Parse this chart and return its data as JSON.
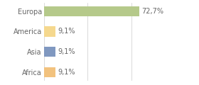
{
  "categories": [
    "Africa",
    "Asia",
    "America",
    "Europa"
  ],
  "values": [
    9.1,
    9.1,
    9.1,
    72.7
  ],
  "bar_colors": [
    "#f2c27e",
    "#8098c0",
    "#f5d88e",
    "#b5c98a"
  ],
  "labels": [
    "9,1%",
    "9,1%",
    "9,1%",
    "72,7%"
  ],
  "xlim": [
    0,
    100
  ],
  "background_color": "#ffffff",
  "label_fontsize": 7,
  "tick_fontsize": 7,
  "bar_height": 0.5,
  "grid_ticks": [
    0,
    33.3,
    66.6,
    100
  ]
}
